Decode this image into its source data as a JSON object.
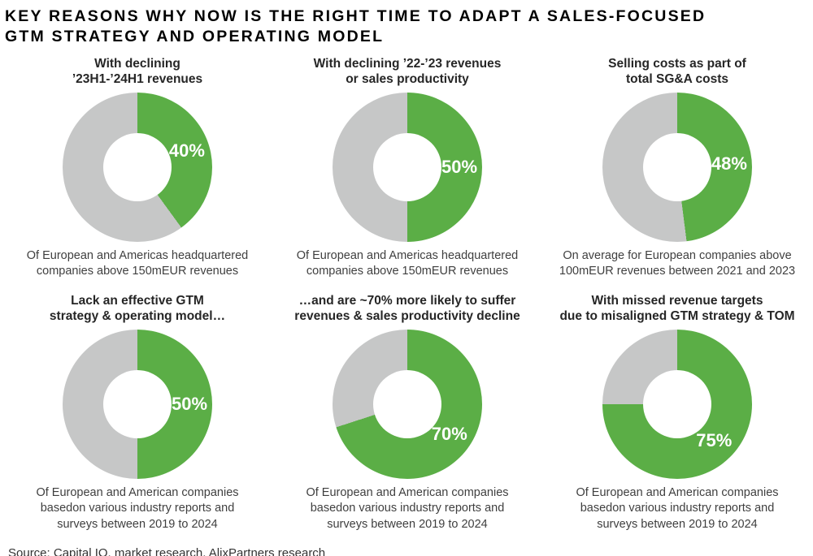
{
  "title": "KEY REASONS WHY NOW IS THE RIGHT TIME TO ADAPT A SALES-FOCUSED\nGTM STRATEGY AND OPERATING MODEL",
  "colors": {
    "accent_green": "#5bae46",
    "track_gray": "#c6c7c7",
    "percent_label_white": "#ffffff"
  },
  "chart_data": [
    {
      "type": "pie",
      "variant": "donut",
      "title": "With declining\n’23H1-’24H1 revenues",
      "percent_value": 40,
      "percent_label": "40%",
      "segments": [
        {
          "name": "highlighted",
          "value": 40,
          "color": "#5bae46"
        },
        {
          "name": "remainder",
          "value": 60,
          "color": "#c6c7c7"
        }
      ],
      "start_angle_deg": 0,
      "direction": "clockwise",
      "caption": "Of European and Americas headquartered\ncompanies above 150mEUR revenues"
    },
    {
      "type": "pie",
      "variant": "donut",
      "title": "With declining ’22-’23 revenues\nor sales productivity",
      "percent_value": 50,
      "percent_label": "50%",
      "segments": [
        {
          "name": "highlighted",
          "value": 50,
          "color": "#5bae46"
        },
        {
          "name": "remainder",
          "value": 50,
          "color": "#c6c7c7"
        }
      ],
      "start_angle_deg": 0,
      "direction": "clockwise",
      "caption": "Of European and Americas headquartered\ncompanies above 150mEUR revenues"
    },
    {
      "type": "pie",
      "variant": "donut",
      "title": "Selling costs as part of\ntotal SG&A costs",
      "percent_value": 48,
      "percent_label": "48%",
      "segments": [
        {
          "name": "highlighted",
          "value": 48,
          "color": "#5bae46"
        },
        {
          "name": "remainder",
          "value": 52,
          "color": "#c6c7c7"
        }
      ],
      "start_angle_deg": 0,
      "direction": "clockwise",
      "caption": "On average for European companies above\n100mEUR revenues between 2021 and 2023"
    },
    {
      "type": "pie",
      "variant": "donut",
      "title": "Lack an effective GTM\nstrategy & operating model…",
      "percent_value": 50,
      "percent_label": "50%",
      "segments": [
        {
          "name": "highlighted",
          "value": 50,
          "color": "#5bae46"
        },
        {
          "name": "remainder",
          "value": 50,
          "color": "#c6c7c7"
        }
      ],
      "start_angle_deg": 0,
      "direction": "clockwise",
      "caption": "Of European and American companies\nbasedon various industry reports and\nsurveys between 2019 to 2024"
    },
    {
      "type": "pie",
      "variant": "donut",
      "title": "…and are ~70% more likely to suffer\nrevenues & sales productivity decline",
      "percent_value": 70,
      "percent_label": "70%",
      "segments": [
        {
          "name": "highlighted",
          "value": 70,
          "color": "#5bae46"
        },
        {
          "name": "remainder",
          "value": 30,
          "color": "#c6c7c7"
        }
      ],
      "start_angle_deg": 0,
      "direction": "clockwise",
      "caption": "Of European and American companies\nbasedon various industry reports and\nsurveys between 2019 to 2024"
    },
    {
      "type": "pie",
      "variant": "donut",
      "title": "With missed revenue targets\ndue to misaligned GTM strategy & TOM",
      "percent_value": 75,
      "percent_label": "75%",
      "segments": [
        {
          "name": "highlighted",
          "value": 75,
          "color": "#5bae46"
        },
        {
          "name": "remainder",
          "value": 25,
          "color": "#c6c7c7"
        }
      ],
      "start_angle_deg": 0,
      "direction": "clockwise",
      "caption": "Of European and American companies\nbasedon various industry reports and\nsurveys between 2019 to 2024"
    }
  ],
  "footer": {
    "source_text": "Source: Capital IQ, market research, AlixPartners research"
  }
}
